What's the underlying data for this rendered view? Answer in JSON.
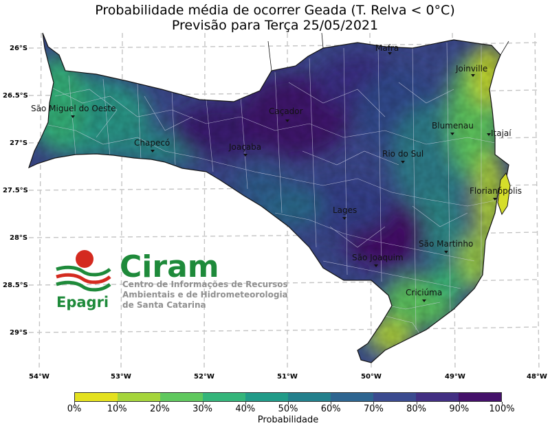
{
  "title_line1": "Probabilidade média de ocorrer Geada (T. Relva < 0°C)",
  "title_line2": "Previsão para Terça 25/05/2021",
  "lat_labels": [
    "26°S",
    "26.5°S",
    "27°S",
    "27.5°S",
    "28°S",
    "28.5°S",
    "29°S"
  ],
  "lon_labels": [
    "54°W",
    "53°W",
    "52°W",
    "51°W",
    "50°W",
    "49°W",
    "48°W"
  ],
  "cities": [
    {
      "name": "Mafra"
    },
    {
      "name": "Joinville"
    },
    {
      "name": "São Miguel do Oeste"
    },
    {
      "name": "Caçador"
    },
    {
      "name": "Blumenau"
    },
    {
      "name": "Itajaí"
    },
    {
      "name": "Chapecó"
    },
    {
      "name": "Joaçaba"
    },
    {
      "name": "Rio do Sul"
    },
    {
      "name": "Florianópolis"
    },
    {
      "name": "Lages"
    },
    {
      "name": "São Martinho"
    },
    {
      "name": "São Joaquim"
    },
    {
      "name": "Criciúma"
    }
  ],
  "colorbar": {
    "label": "Probabilidade",
    "ticks": [
      "0%",
      "10%",
      "20%",
      "30%",
      "40%",
      "50%",
      "60%",
      "70%",
      "80%",
      "90%",
      "100%"
    ],
    "colors": [
      "#e4e11e",
      "#a5d53b",
      "#5fc85e",
      "#34b57a",
      "#219b88",
      "#23808c",
      "#2e6590",
      "#3b4b8f",
      "#433083",
      "#44116a"
    ]
  },
  "logo": {
    "brand": "Ciram",
    "org": "Epagri",
    "line1": "Centro de Informações de Recursos",
    "line2": "Ambientais e de Hidrometeorologia",
    "line3": "de Santa Catarina",
    "green": "#1e8a3a",
    "red": "#d42a1f"
  }
}
